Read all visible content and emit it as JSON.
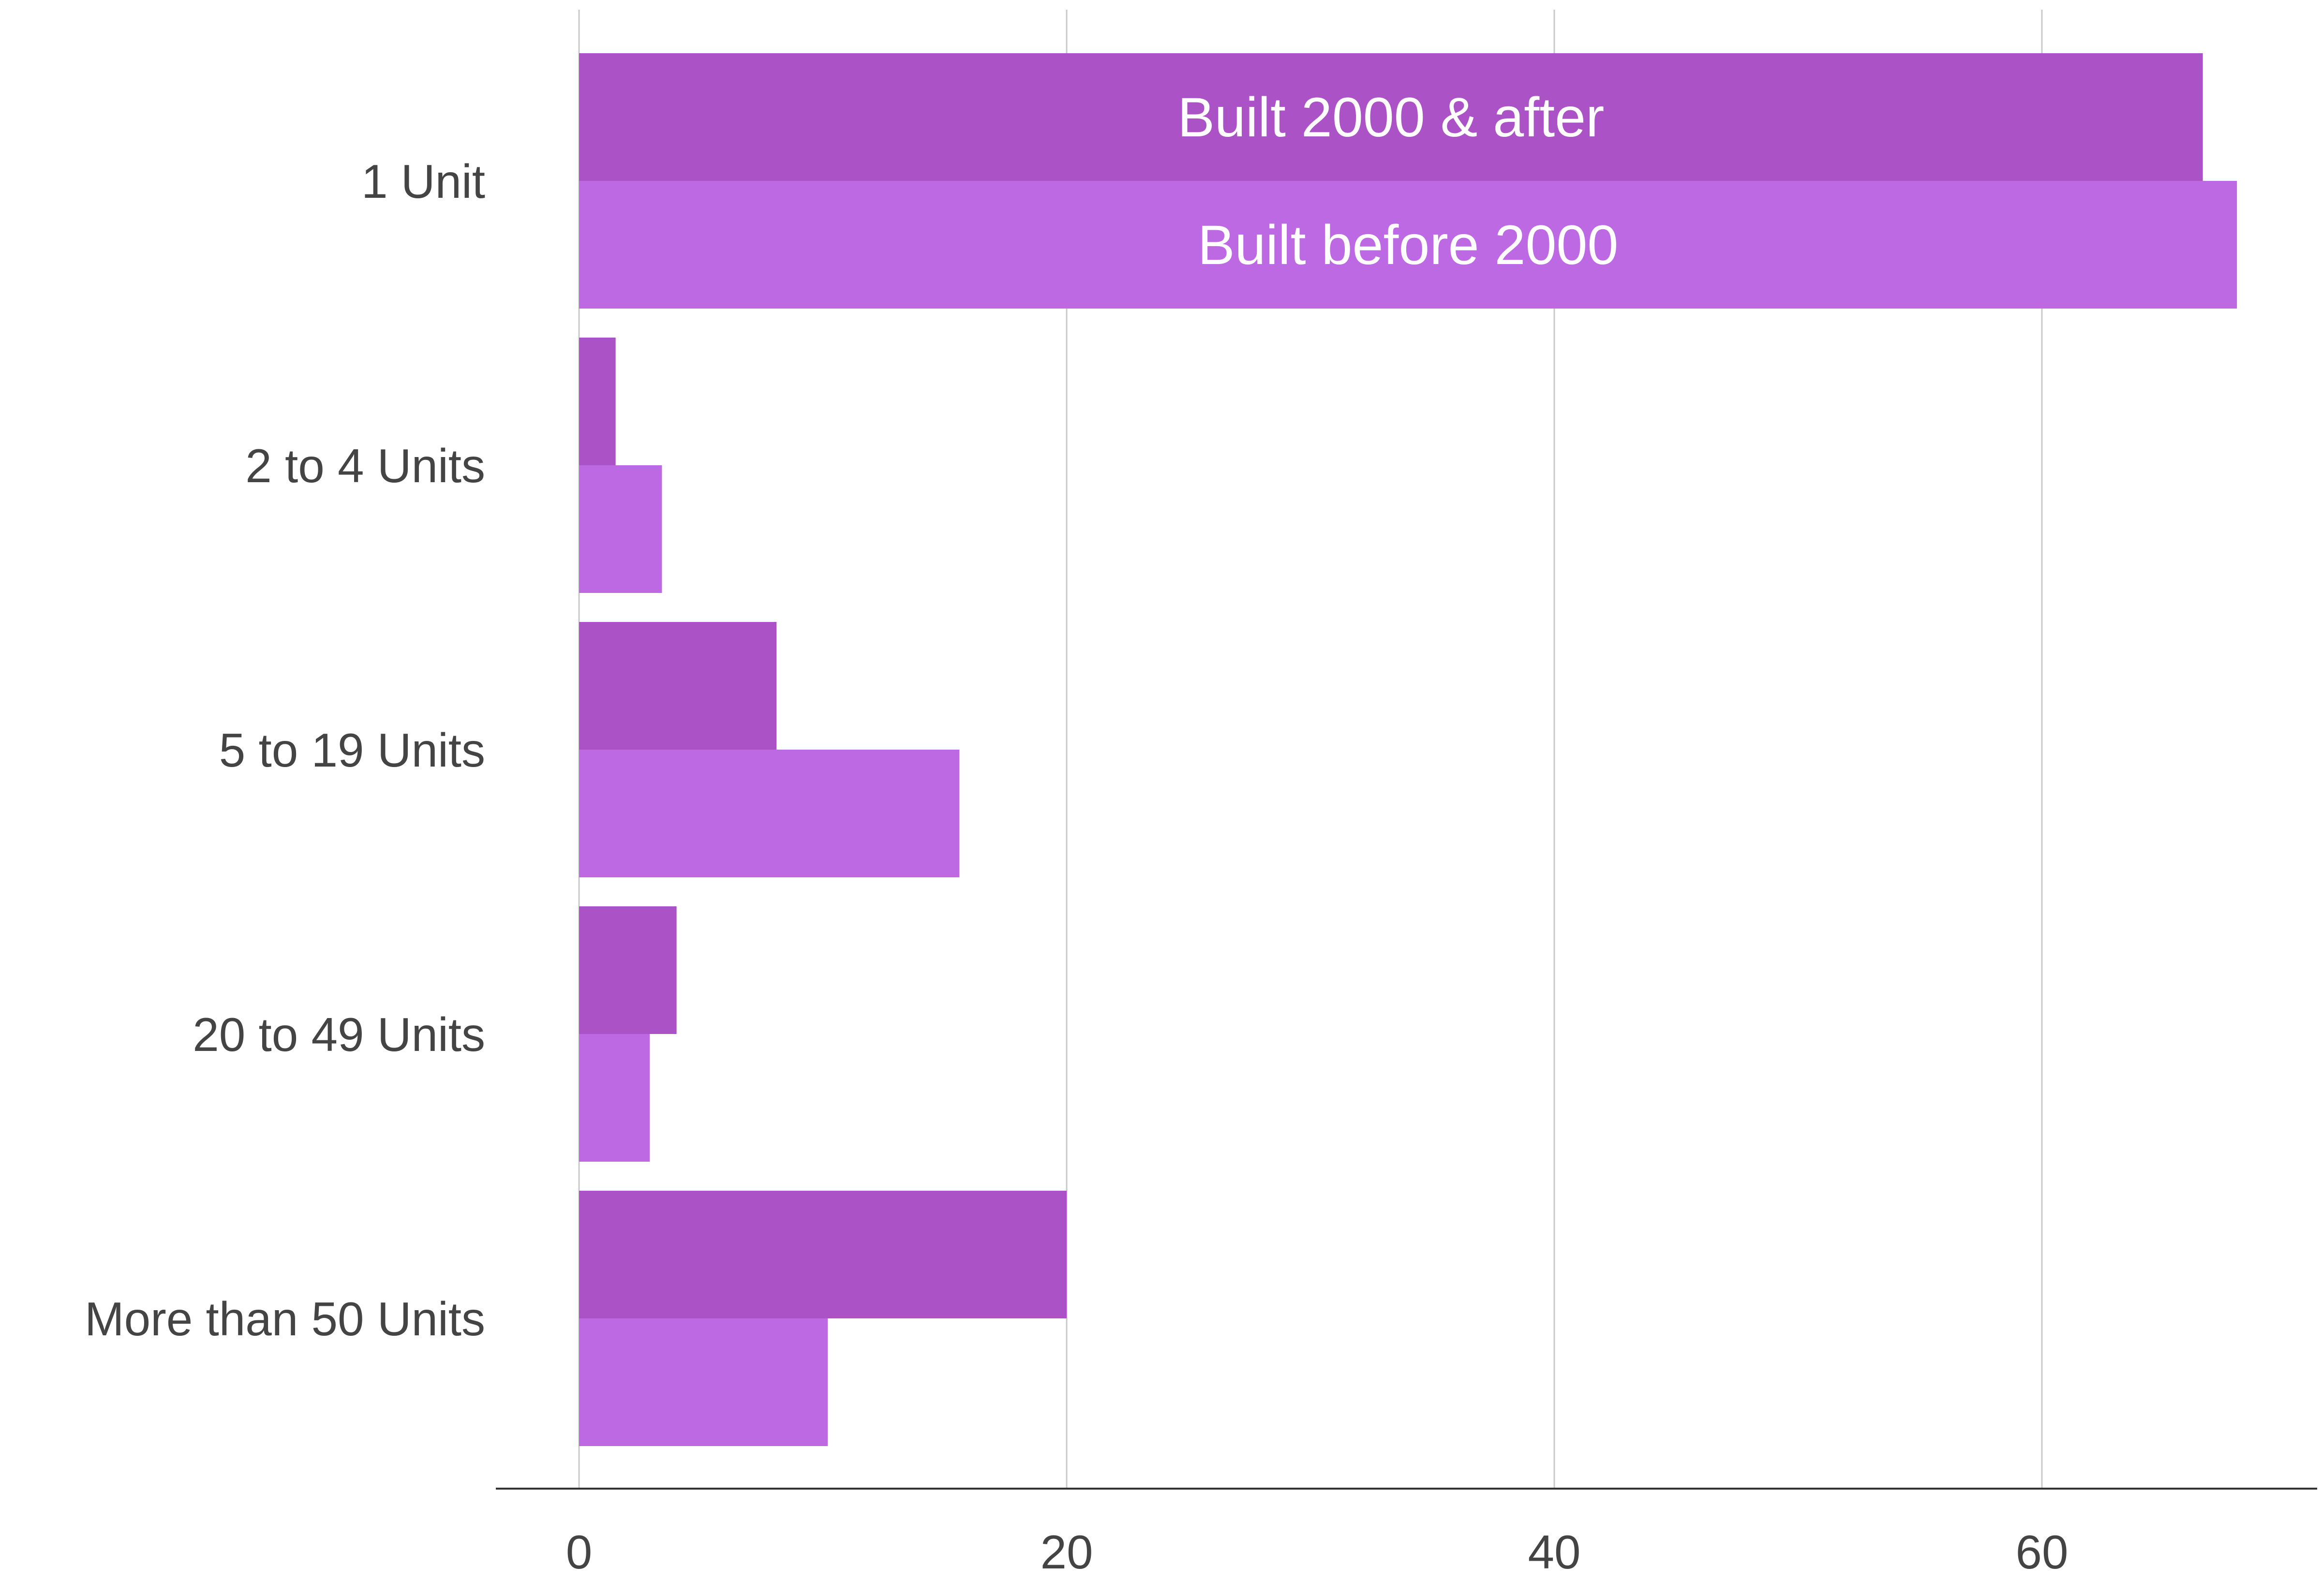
{
  "chart_data": {
    "type": "bar",
    "orientation": "horizontal",
    "categories": [
      "1 Unit",
      "2 to 4 Units",
      "5 to 19 Units",
      "20 to 49 Units",
      "More than 50 Units"
    ],
    "series": [
      {
        "name": "Built 2000 & after",
        "color": "#ab52c7",
        "values": [
          66.6,
          1.5,
          8.1,
          4.0,
          20.0
        ]
      },
      {
        "name": "Built before 2000",
        "color": "#bd69e3",
        "values": [
          68.0,
          3.4,
          15.6,
          2.9,
          10.2
        ]
      }
    ],
    "xlim": [
      0,
      70
    ],
    "xticks": [
      0,
      20,
      40,
      60
    ],
    "xlabel": "",
    "ylabel": "",
    "title": "",
    "grid": true,
    "legend": "labels on first category bars"
  }
}
